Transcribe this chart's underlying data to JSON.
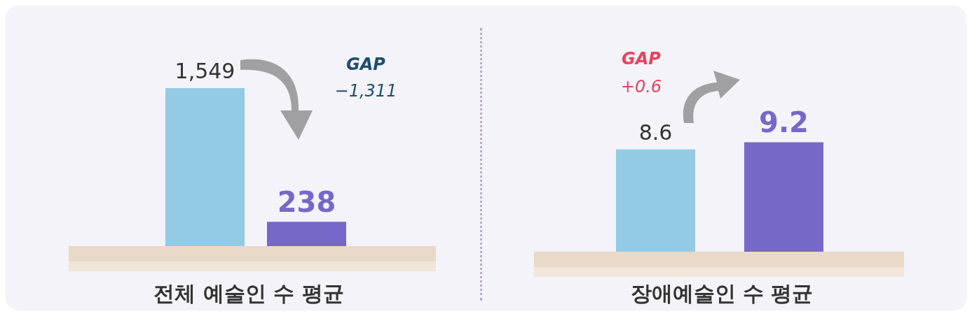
{
  "chart_data": [
    {
      "type": "bar",
      "title": "전체 예술인 수 평균",
      "categories": [
        null,
        null
      ],
      "values": [
        1549,
        238
      ],
      "colors": [
        "#93cbe4",
        "#7668c8"
      ],
      "value_labels": [
        "1,549",
        "238"
      ],
      "annotations": [
        "GAP",
        "−1,311"
      ]
    },
    {
      "type": "bar",
      "title": "장애예술인 수 평균",
      "categories": [
        null,
        null
      ],
      "values": [
        8.6,
        9.2
      ],
      "colors": [
        "#93cbe4",
        "#7668c8"
      ],
      "value_labels": [
        "8.6",
        "9.2"
      ],
      "annotations": [
        "GAP",
        "+0.6"
      ]
    }
  ]
}
